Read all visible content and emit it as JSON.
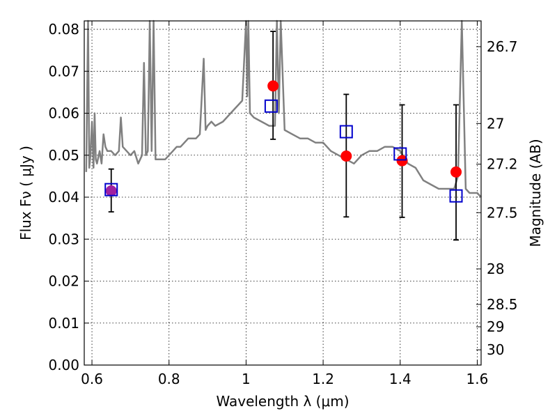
{
  "chart_data": {
    "type": "scatter",
    "xlabel": "Wavelength  λ (μm)",
    "ylabel": "Flux  Fν  ( μJy )",
    "y2label": "Magnitude (AB)",
    "xlim": [
      0.58,
      1.61
    ],
    "ylim": [
      0.0,
      0.082
    ],
    "x_ticks": [
      0.6,
      0.8,
      1.0,
      1.2,
      1.4,
      1.6
    ],
    "x_tick_labels": [
      "0.6",
      "0.8",
      "1",
      "1.2",
      "1.4",
      "1.6"
    ],
    "y_ticks": [
      0.0,
      0.01,
      0.02,
      0.03,
      0.04,
      0.05,
      0.06,
      0.07,
      0.08
    ],
    "y_tick_labels": [
      "0.00",
      "0.01",
      "0.02",
      "0.03",
      "0.04",
      "0.05",
      "0.06",
      "0.07",
      "0.08"
    ],
    "y2_ticks": [
      26.7,
      27.0,
      27.2,
      27.5,
      28.0,
      28.5,
      29.0,
      30.0
    ],
    "y2_tick_labels": [
      "26.7",
      "27",
      "27.2",
      "27.5",
      "28",
      "28.5",
      "29",
      "30"
    ],
    "grid": true,
    "colors": {
      "spectrum": "#808080",
      "observed": "#ff0000",
      "model": "#0000cc",
      "overlap": "#a020a0",
      "errorbar": "#000000"
    },
    "spectrum": {
      "x": [
        0.585,
        0.59,
        0.593,
        0.596,
        0.6,
        0.604,
        0.607,
        0.61,
        0.613,
        0.62,
        0.625,
        0.63,
        0.635,
        0.64,
        0.65,
        0.66,
        0.67,
        0.675,
        0.68,
        0.69,
        0.7,
        0.71,
        0.72,
        0.73,
        0.735,
        0.74,
        0.745,
        0.75,
        0.755,
        0.76,
        0.765,
        0.77,
        0.78,
        0.79,
        0.8,
        0.81,
        0.82,
        0.83,
        0.84,
        0.85,
        0.86,
        0.87,
        0.88,
        0.89,
        0.895,
        0.9,
        0.91,
        0.92,
        0.94,
        0.96,
        0.97,
        0.98,
        0.99,
        1.0,
        1.003,
        1.006,
        1.01,
        1.02,
        1.04,
        1.06,
        1.075,
        1.08,
        1.085,
        1.09,
        1.1,
        1.12,
        1.14,
        1.16,
        1.18,
        1.2,
        1.22,
        1.24,
        1.26,
        1.28,
        1.3,
        1.32,
        1.34,
        1.36,
        1.38,
        1.4,
        1.42,
        1.44,
        1.46,
        1.48,
        1.5,
        1.52,
        1.54,
        1.55,
        1.56,
        1.57,
        1.58,
        1.6,
        1.61
      ],
      "y": [
        0.046,
        0.082,
        0.047,
        0.05,
        0.058,
        0.047,
        0.06,
        0.049,
        0.048,
        0.051,
        0.048,
        0.055,
        0.052,
        0.051,
        0.051,
        0.05,
        0.051,
        0.059,
        0.052,
        0.051,
        0.05,
        0.051,
        0.048,
        0.05,
        0.072,
        0.05,
        0.051,
        0.082,
        0.051,
        0.082,
        0.049,
        0.049,
        0.049,
        0.049,
        0.05,
        0.051,
        0.052,
        0.052,
        0.053,
        0.054,
        0.054,
        0.054,
        0.055,
        0.073,
        0.056,
        0.057,
        0.058,
        0.057,
        0.058,
        0.06,
        0.061,
        0.062,
        0.063,
        0.082,
        0.064,
        0.082,
        0.06,
        0.059,
        0.058,
        0.057,
        0.057,
        0.082,
        0.06,
        0.082,
        0.056,
        0.055,
        0.054,
        0.054,
        0.053,
        0.053,
        0.051,
        0.05,
        0.049,
        0.048,
        0.05,
        0.051,
        0.051,
        0.052,
        0.052,
        0.051,
        0.048,
        0.047,
        0.044,
        0.043,
        0.042,
        0.042,
        0.042,
        0.045,
        0.082,
        0.042,
        0.041,
        0.041,
        0.04
      ]
    },
    "observed": {
      "marker": "circle",
      "x": [
        0.65,
        1.07,
        1.26,
        1.405,
        1.545
      ],
      "y": [
        0.0415,
        0.0665,
        0.0498,
        0.0487,
        0.046
      ],
      "yerr_low": [
        0.0365,
        0.0538,
        0.0353,
        0.0352,
        0.0298
      ],
      "yerr_high": [
        0.0467,
        0.0795,
        0.0645,
        0.062,
        0.062
      ]
    },
    "model": {
      "marker": "square",
      "x": [
        0.65,
        1.065,
        1.26,
        1.4,
        1.545
      ],
      "y": [
        0.0418,
        0.0617,
        0.0556,
        0.0503,
        0.0403
      ]
    }
  }
}
